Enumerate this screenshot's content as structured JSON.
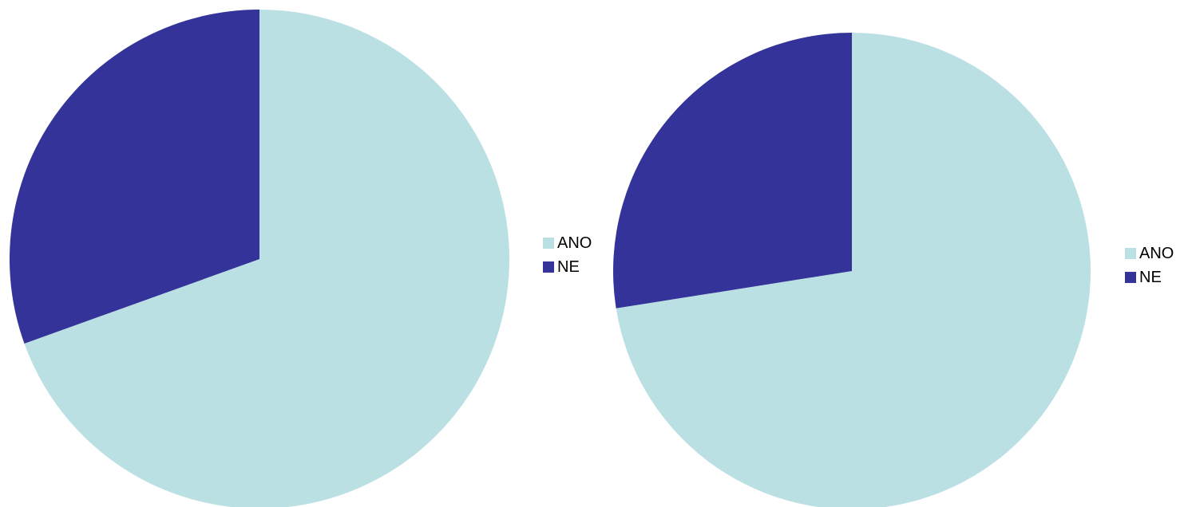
{
  "chart_data": [
    {
      "type": "pie",
      "title": "",
      "slices": [
        {
          "label": "ANO",
          "value": 69.5,
          "color": "#BBE0E3"
        },
        {
          "label": "NE",
          "value": 30.5,
          "color": "#333399"
        }
      ],
      "legend": {
        "position": "right",
        "entries": [
          "ANO",
          "NE"
        ]
      },
      "start_angle_deg": 0,
      "direction": "clockwise"
    },
    {
      "type": "pie",
      "title": "",
      "slices": [
        {
          "label": "ANO",
          "value": 72.5,
          "color": "#BBE0E3"
        },
        {
          "label": "NE",
          "value": 27.5,
          "color": "#333399"
        }
      ],
      "legend": {
        "position": "right",
        "entries": [
          "ANO",
          "NE"
        ]
      },
      "start_angle_deg": 0,
      "direction": "clockwise"
    }
  ]
}
